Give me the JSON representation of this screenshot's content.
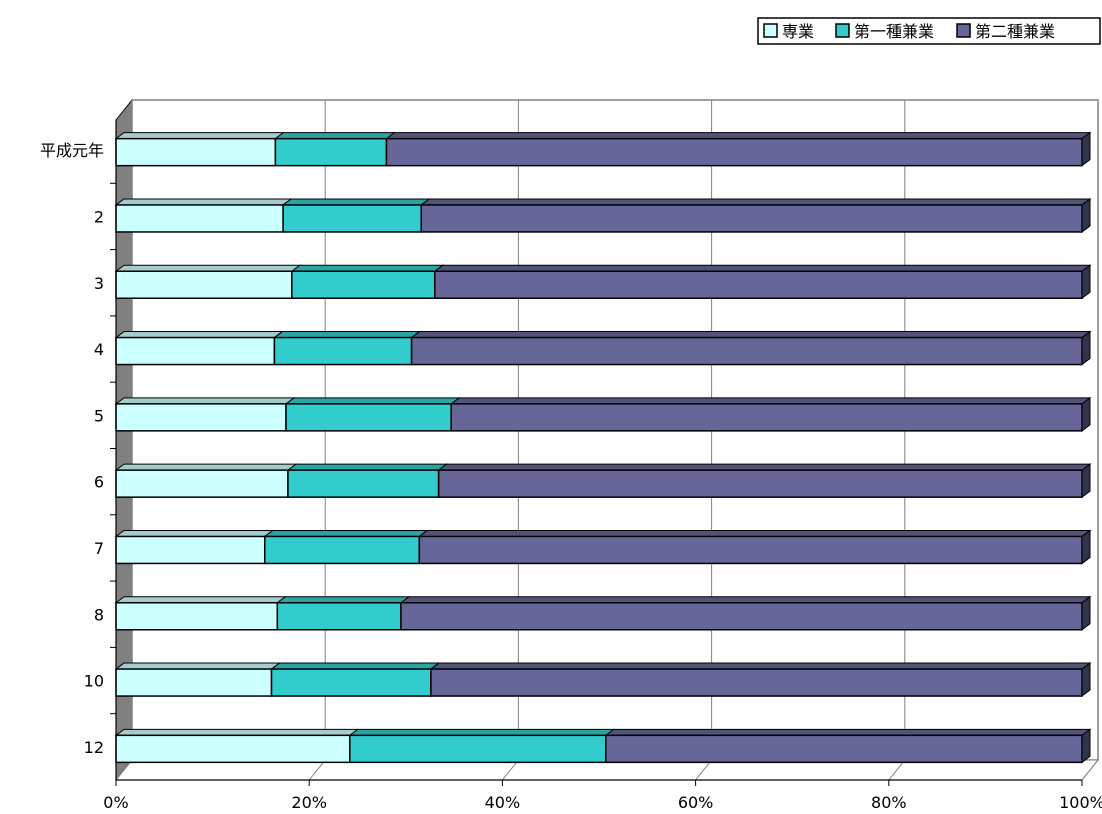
{
  "chart_data": {
    "type": "bar",
    "orientation": "horizontal",
    "stacked": "percent",
    "categories": [
      "平成元年",
      "2",
      "3",
      "4",
      "5",
      "6",
      "7",
      "8",
      "10",
      "12"
    ],
    "series": [
      {
        "name": "専業",
        "color": "#ccffff",
        "values": [
          16.5,
          17.3,
          18.2,
          16.4,
          17.6,
          17.8,
          15.4,
          16.7,
          16.1,
          24.2
        ]
      },
      {
        "name": "第一種兼業",
        "color": "#33cccc",
        "values": [
          11.5,
          14.3,
          14.8,
          14.2,
          17.1,
          15.6,
          16.0,
          12.8,
          16.5,
          26.5
        ]
      },
      {
        "name": "第二種兼業",
        "color": "#666699",
        "values": [
          72.0,
          68.4,
          67.0,
          69.4,
          65.3,
          66.6,
          68.6,
          70.5,
          67.4,
          49.3
        ]
      }
    ],
    "x_ticks": [
      "0%",
      "20%",
      "40%",
      "60%",
      "80%",
      "100%"
    ],
    "xlim": [
      0,
      100
    ],
    "grid": true,
    "legend_position": "top-right",
    "wall_color": "#808080"
  }
}
